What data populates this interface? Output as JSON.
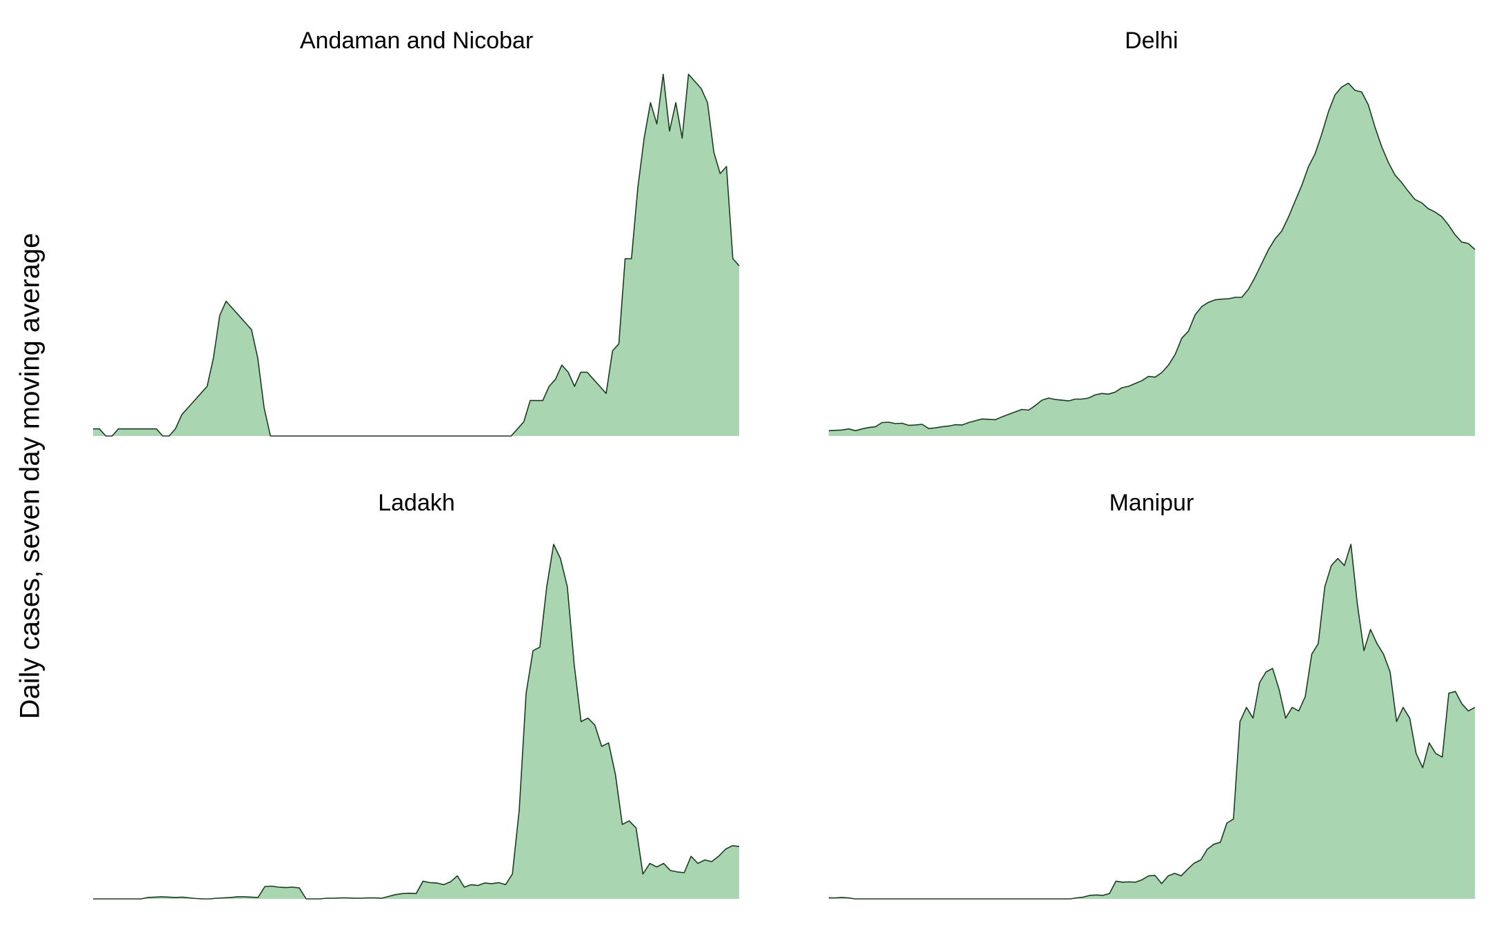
{
  "figure": {
    "ylabel": "Daily cases, seven day moving average",
    "fill_color": "#a9d6b1",
    "line_color": "#1a3a1f"
  },
  "chart_data": [
    {
      "type": "area",
      "title": "Andaman and Nicobar",
      "x_axis": "days (index)",
      "ylim": [
        0,
        100
      ],
      "values": [
        2,
        2,
        0,
        0,
        2,
        2,
        2,
        2,
        2,
        2,
        2,
        0,
        0,
        2,
        6,
        8,
        10,
        12,
        14,
        22,
        34,
        38,
        36,
        34,
        32,
        30,
        22,
        8,
        0,
        0,
        0,
        0,
        0,
        0,
        0,
        0,
        0,
        0,
        0,
        0,
        0,
        0,
        0,
        0,
        0,
        0,
        0,
        0,
        0,
        0,
        0,
        0,
        0,
        0,
        0,
        0,
        0,
        0,
        0,
        0,
        0,
        0,
        0,
        0,
        0,
        0,
        0,
        2,
        4,
        10,
        10,
        10,
        14,
        16,
        20,
        18,
        14,
        18,
        18,
        16,
        14,
        12,
        24,
        26,
        50,
        50,
        70,
        84,
        94,
        88,
        102,
        86,
        94,
        84,
        102,
        100,
        98,
        94,
        80,
        74,
        76,
        50,
        48
      ]
    },
    {
      "type": "area",
      "title": "Delhi",
      "x_axis": "days (index)",
      "ylim": [
        0,
        100
      ],
      "values": [
        1.5,
        1.6,
        1.7,
        2.0,
        1.5,
        2.0,
        2.4,
        2.6,
        3.8,
        3.9,
        3.5,
        3.6,
        3.0,
        3.1,
        3.3,
        2.1,
        2.3,
        2.6,
        2.8,
        3.2,
        3.1,
        3.8,
        4.3,
        4.8,
        4.7,
        4.6,
        5.4,
        6.1,
        6.8,
        7.5,
        7.3,
        8.6,
        10.1,
        10.7,
        10.3,
        10.1,
        9.9,
        10.4,
        10.4,
        10.7,
        11.6,
        12.0,
        11.8,
        12.4,
        13.6,
        14.0,
        14.8,
        15.6,
        16.8,
        16.6,
        17.9,
        20.0,
        23.0,
        27.6,
        29.6,
        34.2,
        36.5,
        37.7,
        38.4,
        38.6,
        38.7,
        39.1,
        39.1,
        41.4,
        44.8,
        48.7,
        52.5,
        55.6,
        57.8,
        61.7,
        66.2,
        70.6,
        75.9,
        79.6,
        85.1,
        91.4,
        96.2,
        98.4,
        99.5,
        97.5,
        97.0,
        93.4,
        87.1,
        81.6,
        77.2,
        73.6,
        71.5,
        69.0,
        66.7,
        65.8,
        64.1,
        63.2,
        61.9,
        59.6,
        56.8,
        54.7,
        54.3,
        52.6
      ]
    },
    {
      "type": "area",
      "title": "Ladakh",
      "x_axis": "days (index)",
      "ylim": [
        0,
        100
      ],
      "values": [
        0,
        0,
        0,
        0,
        0,
        0,
        0,
        0,
        0.4,
        0.5,
        0.6,
        0.5,
        0.4,
        0.5,
        0.3,
        0.1,
        0,
        0,
        0.2,
        0.3,
        0.4,
        0.6,
        0.6,
        0.5,
        0.4,
        3.5,
        3.6,
        3.3,
        3.2,
        3.3,
        3.1,
        0,
        0,
        0,
        0.2,
        0.2,
        0.3,
        0.3,
        0.2,
        0.2,
        0.3,
        0.3,
        0.2,
        0.7,
        1.2,
        1.5,
        1.6,
        1.5,
        5.0,
        4.6,
        4.5,
        4.0,
        4.8,
        6.5,
        3.3,
        4.0,
        3.8,
        4.5,
        4.3,
        4.6,
        4.0,
        7.0,
        25,
        58,
        70,
        71,
        88,
        100,
        96,
        88,
        66,
        50,
        51,
        49,
        43,
        44,
        35,
        21,
        22,
        20,
        7,
        10,
        9,
        10,
        8,
        7.6,
        7.4,
        12,
        10,
        11,
        10.5,
        12,
        14,
        15,
        14.8
      ]
    },
    {
      "type": "area",
      "title": "Manipur",
      "x_axis": "days (index)",
      "ylim": [
        0,
        100
      ],
      "values": [
        0.3,
        0.3,
        0.4,
        0.3,
        0,
        0,
        0,
        0,
        0,
        0,
        0,
        0,
        0,
        0,
        0,
        0,
        0,
        0,
        0,
        0,
        0,
        0,
        0,
        0,
        0,
        0,
        0,
        0,
        0,
        0,
        0,
        0,
        0,
        0,
        0,
        0,
        0,
        0,
        0.3,
        0.5,
        1.0,
        1.1,
        1.0,
        1.5,
        5.0,
        4.7,
        4.8,
        4.7,
        5.4,
        6.5,
        6.6,
        4.3,
        6.5,
        7.2,
        6.5,
        8.4,
        10.1,
        11.0,
        14.0,
        15.4,
        16.0,
        21.4,
        22.5,
        50,
        54,
        51,
        61,
        64,
        65,
        59,
        51,
        54,
        53,
        57,
        69,
        72,
        88,
        94,
        96,
        94,
        100,
        83,
        70,
        76,
        72,
        69,
        64,
        50,
        54,
        51,
        41,
        37,
        44,
        41,
        40,
        58,
        58.5,
        55,
        53,
        54
      ]
    }
  ]
}
